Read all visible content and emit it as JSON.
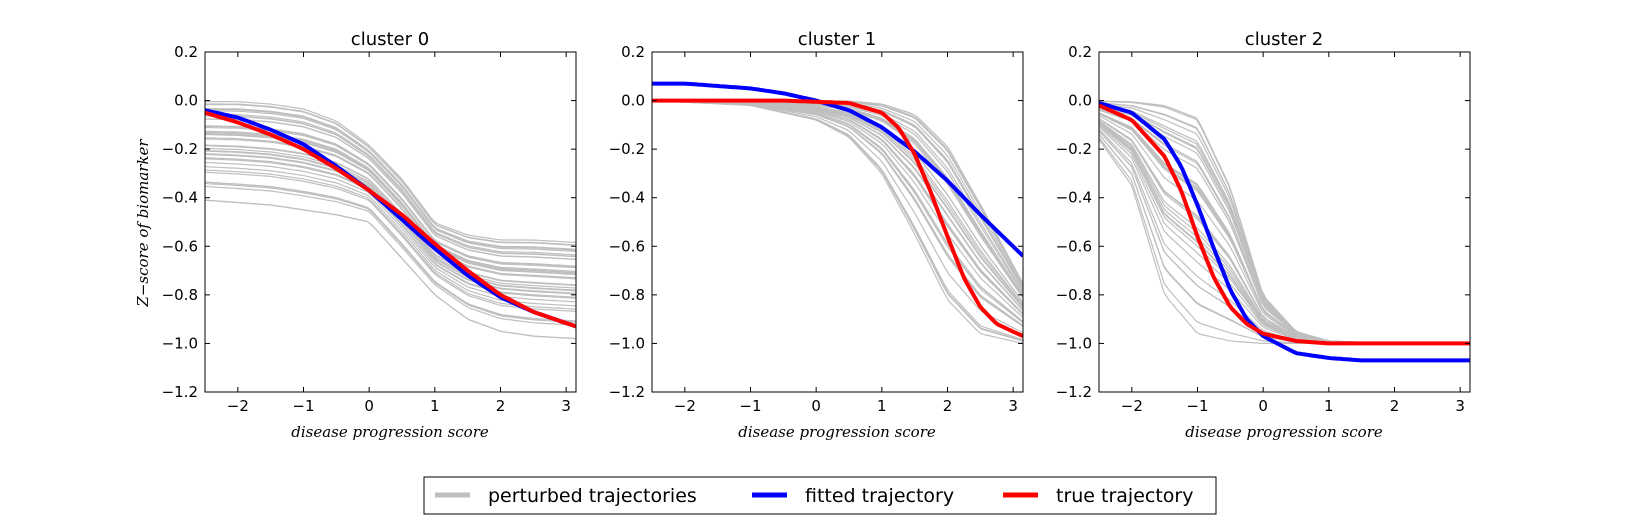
{
  "chart_data": {
    "type": "line",
    "ylabel": "Z−score of biomarker",
    "xlabel": "disease progression score",
    "xlim": [
      -2.5,
      3.15
    ],
    "ylim": [
      -1.2,
      0.2
    ],
    "xticks": [
      -2,
      -1,
      0,
      1,
      2,
      3
    ],
    "yticks": [
      0.2,
      0.0,
      -0.2,
      -0.4,
      -0.6,
      -0.8,
      -1.0,
      -1.2
    ],
    "xtick_labels": [
      "−2",
      "−1",
      "0",
      "1",
      "2",
      "3"
    ],
    "ytick_labels": [
      "0.2",
      "0.0",
      "−0.2",
      "−0.4",
      "−0.6",
      "−0.8",
      "−1.0",
      "−1.2"
    ],
    "grid": false,
    "legend": {
      "placement": "bottom-center",
      "entries": [
        {
          "label": "perturbed trajectories",
          "color": "#bfbfbf"
        },
        {
          "label": "fitted trajectory",
          "color": "#0000ff"
        },
        {
          "label": "true trajectory",
          "color": "#ff0000"
        }
      ]
    },
    "panels": [
      {
        "title": "cluster 0",
        "true": {
          "x": [
            -2.5,
            -2,
            -1.5,
            -1,
            -0.5,
            0,
            0.5,
            1,
            1.5,
            2,
            2.5,
            3.15
          ],
          "y": [
            -0.05,
            -0.09,
            -0.14,
            -0.2,
            -0.28,
            -0.37,
            -0.47,
            -0.59,
            -0.7,
            -0.8,
            -0.87,
            -0.93
          ]
        },
        "fitted": {
          "x": [
            -2.5,
            -2,
            -1.5,
            -1,
            -0.5,
            0,
            0.5,
            1,
            1.5,
            2,
            2.5,
            3.15
          ],
          "y": [
            -0.04,
            -0.07,
            -0.12,
            -0.18,
            -0.27,
            -0.37,
            -0.49,
            -0.61,
            -0.72,
            -0.81,
            -0.87,
            -0.93
          ]
        },
        "perturbed_band": {
          "x": [
            -2.5,
            -2,
            -1.5,
            -1,
            -0.5,
            0,
            0.5,
            1,
            1.5,
            2,
            2.5,
            3.15
          ],
          "upper": [
            0.0,
            0.0,
            -0.01,
            -0.03,
            -0.08,
            -0.18,
            -0.32,
            -0.5,
            -0.55,
            -0.57,
            -0.57,
            -0.58
          ],
          "lower": [
            -0.41,
            -0.42,
            -0.43,
            -0.45,
            -0.47,
            -0.5,
            -0.65,
            -0.8,
            -0.9,
            -0.95,
            -0.97,
            -0.98
          ]
        }
      },
      {
        "title": "cluster 1",
        "true": {
          "x": [
            -2.5,
            -1.5,
            -0.5,
            0.5,
            1,
            1.25,
            1.5,
            1.75,
            2,
            2.25,
            2.5,
            2.75,
            3.15
          ],
          "y": [
            0.0,
            0.0,
            0.0,
            -0.01,
            -0.05,
            -0.11,
            -0.22,
            -0.38,
            -0.56,
            -0.73,
            -0.85,
            -0.92,
            -0.97
          ]
        },
        "fitted": {
          "x": [
            -2.5,
            -2,
            -1.5,
            -1,
            -0.5,
            0,
            0.5,
            1,
            1.5,
            2,
            2.5,
            3.15
          ],
          "y": [
            0.07,
            0.07,
            0.06,
            0.05,
            0.03,
            0.0,
            -0.04,
            -0.11,
            -0.21,
            -0.33,
            -0.47,
            -0.64
          ]
        },
        "perturbed_band": {
          "x": [
            -2.5,
            -1,
            0,
            0.5,
            1,
            1.5,
            2,
            2.5,
            3.15
          ],
          "upper": [
            0.0,
            0.0,
            0.0,
            0.0,
            -0.01,
            -0.05,
            -0.18,
            -0.42,
            -0.75
          ],
          "lower": [
            0.0,
            -0.02,
            -0.08,
            -0.15,
            -0.3,
            -0.55,
            -0.82,
            -0.96,
            -1.0
          ]
        }
      },
      {
        "title": "cluster 2",
        "true": {
          "x": [
            -2.5,
            -2,
            -1.5,
            -1.25,
            -1,
            -0.75,
            -0.5,
            -0.25,
            0,
            0.5,
            1,
            2,
            3.15
          ],
          "y": [
            -0.02,
            -0.08,
            -0.23,
            -0.37,
            -0.56,
            -0.73,
            -0.85,
            -0.92,
            -0.96,
            -0.99,
            -1.0,
            -1.0,
            -1.0
          ]
        },
        "fitted": {
          "x": [
            -2.5,
            -2,
            -1.5,
            -1.25,
            -1,
            -0.75,
            -0.5,
            -0.25,
            0,
            0.5,
            1,
            1.5,
            2,
            3.15
          ],
          "y": [
            -0.01,
            -0.05,
            -0.16,
            -0.27,
            -0.43,
            -0.61,
            -0.78,
            -0.9,
            -0.97,
            -1.04,
            -1.06,
            -1.07,
            -1.07,
            -1.07
          ]
        },
        "perturbed_band": {
          "x": [
            -2.5,
            -2,
            -1.5,
            -1,
            -0.5,
            0,
            0.5,
            1,
            2,
            3.15
          ],
          "upper": [
            0.0,
            0.0,
            -0.01,
            -0.06,
            -0.35,
            -0.8,
            -0.95,
            -0.99,
            -1.0,
            -1.0
          ],
          "lower": [
            -0.16,
            -0.35,
            -0.8,
            -0.96,
            -0.99,
            -1.0,
            -1.0,
            -1.0,
            -1.0,
            -1.0
          ]
        }
      }
    ]
  }
}
